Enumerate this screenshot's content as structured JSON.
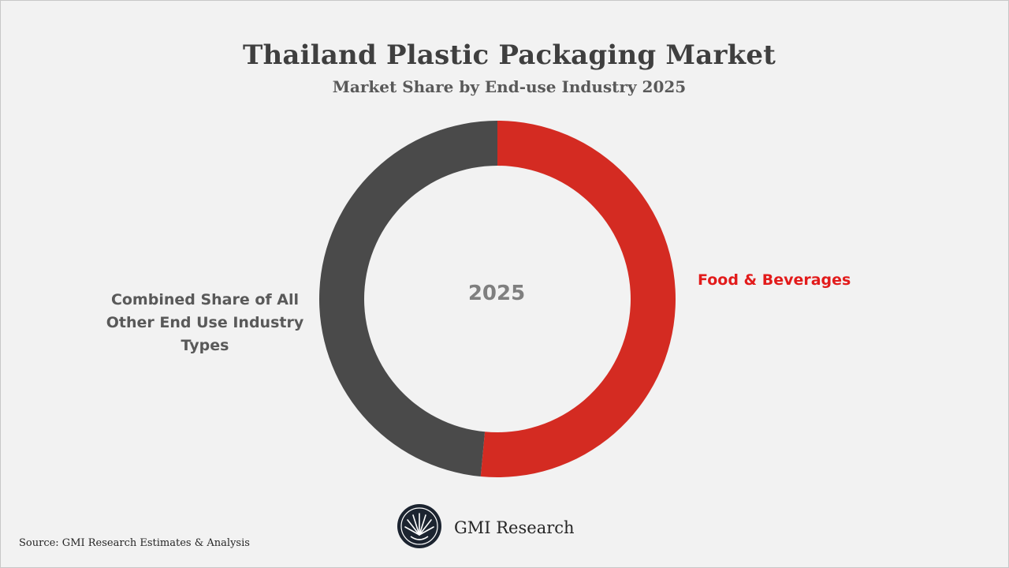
{
  "colors": {
    "food_beverages": "#d42b22",
    "others": "#4a4a4a",
    "background": "#f2f2f2",
    "label_red": "#e21b1b"
  },
  "chart_data": {
    "type": "pie",
    "style": "donut",
    "title": "Thailand Plastic Packaging Market",
    "subtitle": "Market Share by End-use Industry 2025",
    "center_label": "2025",
    "slices": [
      {
        "label": "Food & Beverages",
        "value": 51.5
      },
      {
        "label": "Combined Share of All Other End Use Industry Types",
        "value": 48.5
      }
    ],
    "labels": {
      "right": "Food & Beverages",
      "left_lines": [
        "Combined Share of All",
        "Other End Use Industry",
        "Types"
      ]
    }
  },
  "footer": {
    "brand": "GMI Research",
    "source": "Source: GMI Research Estimates & Analysis",
    "logo_icon": "gmi-research-logo-icon"
  }
}
